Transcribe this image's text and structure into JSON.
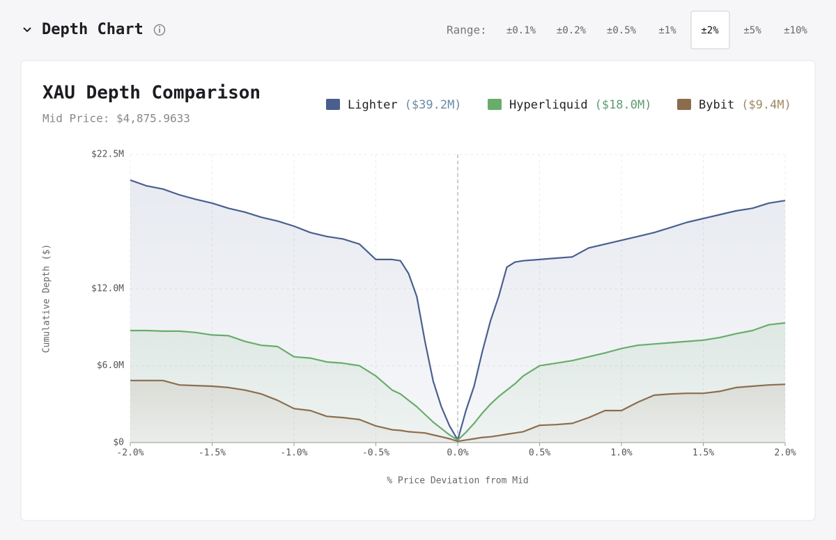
{
  "header": {
    "title": "Depth Chart",
    "range_label": "Range:",
    "range_options": [
      "±0.1%",
      "±0.2%",
      "±0.5%",
      "±1%",
      "±2%",
      "±5%",
      "±10%"
    ],
    "selected": 4
  },
  "chart_data": {
    "type": "line",
    "title": "XAU Depth Comparison",
    "subtitle": "Mid Price: $4,875.9633",
    "x_label": "% Price Deviation from Mid",
    "y_label": "Cumulative Depth ($)",
    "x": [
      -2,
      -1.9,
      -1.8,
      -1.7,
      -1.6,
      -1.5,
      -1.4,
      -1.3,
      -1.2,
      -1.1,
      -1,
      -0.9,
      -0.8,
      -0.7,
      -0.6,
      -0.5,
      -0.4,
      -0.35,
      -0.3,
      -0.25,
      -0.2,
      -0.15,
      -0.1,
      -0.05,
      0,
      0.05,
      0.1,
      0.15,
      0.2,
      0.25,
      0.3,
      0.35,
      0.4,
      0.5,
      0.6,
      0.7,
      0.8,
      0.9,
      1,
      1.1,
      1.2,
      1.3,
      1.4,
      1.5,
      1.6,
      1.7,
      1.8,
      1.9,
      2
    ],
    "series": [
      {
        "name": "Lighter",
        "color": "#4a5f8e",
        "label_color": "#6a8aa6",
        "total": 39200000,
        "total_label": "($39.2M)",
        "values": [
          20500000,
          20050000,
          19800000,
          19350000,
          19000000,
          18700000,
          18300000,
          18000000,
          17600000,
          17300000,
          16900000,
          16400000,
          16100000,
          15900000,
          15500000,
          14300000,
          14300000,
          14200000,
          13200000,
          11400000,
          7900000,
          4800000,
          2800000,
          1300000,
          200000,
          2500000,
          4400000,
          7100000,
          9500000,
          11400000,
          13700000,
          14100000,
          14200000,
          14300000,
          14400000,
          14500000,
          15200000,
          15500000,
          15800000,
          16100000,
          16400000,
          16800000,
          17200000,
          17500000,
          17800000,
          18100000,
          18300000,
          18700000,
          18900000
        ]
      },
      {
        "name": "Hyperliquid",
        "color": "#68ad6a",
        "label_color": "#5f9a73",
        "total": 18000000,
        "total_label": "($18.0M)",
        "values": [
          8750000,
          8750000,
          8700000,
          8700000,
          8600000,
          8400000,
          8350000,
          7900000,
          7600000,
          7500000,
          6700000,
          6600000,
          6300000,
          6200000,
          6000000,
          5200000,
          4100000,
          3800000,
          3300000,
          2800000,
          2200000,
          1600000,
          1100000,
          600000,
          200000,
          800000,
          1500000,
          2300000,
          3000000,
          3600000,
          4100000,
          4600000,
          5200000,
          6000000,
          6200000,
          6400000,
          6700000,
          7000000,
          7350000,
          7600000,
          7700000,
          7800000,
          7900000,
          8000000,
          8200000,
          8500000,
          8750000,
          9200000,
          9350000
        ]
      },
      {
        "name": "Bybit",
        "color": "#8b6d4e",
        "label_color": "#a08a66",
        "total": 9400000,
        "total_label": "($9.4M)",
        "values": [
          4850000,
          4850000,
          4850000,
          4500000,
          4450000,
          4400000,
          4300000,
          4100000,
          3800000,
          3300000,
          2650000,
          2500000,
          2050000,
          1950000,
          1800000,
          1300000,
          1000000,
          950000,
          850000,
          800000,
          750000,
          600000,
          450000,
          300000,
          100000,
          200000,
          300000,
          400000,
          450000,
          550000,
          650000,
          750000,
          850000,
          1350000,
          1400000,
          1500000,
          1950000,
          2500000,
          2500000,
          3150000,
          3700000,
          3800000,
          3850000,
          3850000,
          4000000,
          4300000,
          4400000,
          4500000,
          4550000
        ]
      }
    ],
    "xlim": [
      -2,
      2
    ],
    "xticks": [
      {
        "value": -2,
        "label": "-2.0%"
      },
      {
        "value": -1.5,
        "label": "-1.5%"
      },
      {
        "value": -1,
        "label": "-1.0%"
      },
      {
        "value": -0.5,
        "label": "-0.5%"
      },
      {
        "value": 0,
        "label": "0.0%"
      },
      {
        "value": 0.5,
        "label": "0.5%"
      },
      {
        "value": 1,
        "label": "1.0%"
      },
      {
        "value": 1.5,
        "label": "1.5%"
      },
      {
        "value": 2,
        "label": "2.0%"
      }
    ],
    "ylim": [
      0,
      22500000
    ],
    "yticks": [
      {
        "value": 0,
        "label": "$0"
      },
      {
        "value": 6000000,
        "label": "$6.0M"
      },
      {
        "value": 12000000,
        "label": "$12.0M"
      },
      {
        "value": 22500000,
        "label": "$22.5M"
      }
    ],
    "grid": true,
    "mid_line_x": 0,
    "area_fill": true,
    "step": true
  }
}
